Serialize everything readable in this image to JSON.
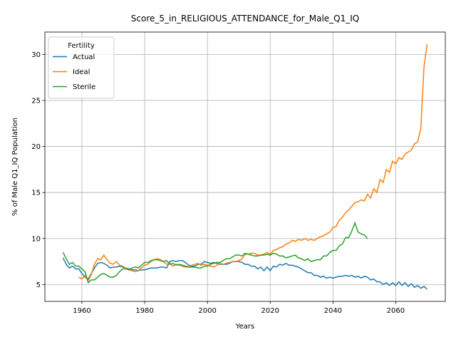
{
  "chart_data": {
    "type": "line",
    "title": "Score_5_in_RELIGIOUS_ATTENDANCE_for_Male_Q1_IQ",
    "xlabel": "Years",
    "ylabel": "% of Male Q1_IQ Population",
    "legend_title": "Fertility",
    "legend_loc": "upper left",
    "grid": true,
    "xlim": [
      1948.2,
      2075.8
    ],
    "ylim": [
      3.17,
      32.43
    ],
    "xticks": [
      1960,
      1980,
      2000,
      2020,
      2040,
      2060
    ],
    "yticks": [
      5,
      10,
      15,
      20,
      25,
      30
    ],
    "x": [
      1954,
      1955,
      1956,
      1957,
      1958,
      1959,
      1960,
      1961,
      1962,
      1963,
      1964,
      1965,
      1966,
      1967,
      1968,
      1969,
      1970,
      1971,
      1972,
      1973,
      1974,
      1975,
      1976,
      1977,
      1978,
      1979,
      1980,
      1981,
      1982,
      1983,
      1984,
      1985,
      1986,
      1987,
      1988,
      1989,
      1990,
      1991,
      1992,
      1993,
      1994,
      1995,
      1996,
      1997,
      1998,
      1999,
      2000,
      2001,
      2002,
      2003,
      2004,
      2005,
      2006,
      2007,
      2008,
      2009,
      2010,
      2011,
      2012,
      2013,
      2014,
      2015,
      2016,
      2017,
      2018,
      2019,
      2020,
      2021,
      2022,
      2023,
      2024,
      2025,
      2026,
      2027,
      2028,
      2029,
      2030,
      2031,
      2032,
      2033,
      2034,
      2035,
      2036,
      2037,
      2038,
      2039,
      2040,
      2041,
      2042,
      2043,
      2044,
      2045,
      2046,
      2047,
      2048,
      2049,
      2050,
      2051,
      2052,
      2053,
      2054,
      2055,
      2056,
      2057,
      2058,
      2059,
      2060,
      2061,
      2062,
      2063,
      2064,
      2065,
      2066,
      2067,
      2068,
      2069,
      2070
    ],
    "series": [
      {
        "name": "Actual",
        "color": "#1f77b4",
        "values": [
          7.9,
          7.2,
          6.8,
          7.0,
          6.7,
          6.7,
          6.2,
          5.8,
          5.6,
          6.2,
          6.8,
          7.3,
          7.4,
          7.3,
          7.1,
          6.8,
          6.9,
          6.9,
          7.0,
          6.9,
          6.8,
          6.7,
          6.6,
          6.6,
          6.5,
          6.6,
          6.6,
          6.7,
          6.8,
          6.8,
          6.8,
          6.9,
          6.9,
          6.8,
          7.5,
          7.6,
          7.5,
          7.6,
          7.6,
          7.4,
          7.1,
          7.0,
          7.0,
          7.2,
          7.2,
          7.5,
          7.4,
          7.3,
          7.4,
          7.3,
          7.2,
          7.2,
          7.2,
          7.3,
          7.5,
          7.5,
          7.5,
          7.4,
          7.2,
          7.2,
          7.0,
          7.0,
          6.7,
          6.9,
          6.5,
          6.9,
          6.5,
          7.0,
          6.9,
          7.2,
          7.1,
          7.3,
          7.1,
          7.1,
          7.0,
          6.9,
          6.7,
          6.5,
          6.3,
          6.3,
          6.0,
          6.0,
          5.8,
          5.9,
          5.7,
          5.8,
          5.7,
          5.8,
          5.9,
          5.9,
          6.0,
          5.9,
          6.0,
          5.8,
          5.9,
          5.7,
          5.9,
          5.8,
          5.5,
          5.6,
          5.3,
          5.3,
          5.0,
          5.2,
          4.9,
          5.2,
          4.9,
          5.3,
          4.9,
          5.2,
          4.8,
          5.1,
          4.7,
          4.9,
          4.6,
          4.8,
          4.5
        ]
      },
      {
        "name": "Ideal",
        "color": "#ff7f0e",
        "values": [
          null,
          null,
          null,
          null,
          null,
          5.8,
          5.6,
          6.0,
          5.4,
          6.1,
          7.2,
          7.8,
          7.7,
          8.2,
          7.7,
          7.3,
          7.2,
          7.5,
          7.1,
          7.0,
          6.8,
          6.6,
          6.5,
          6.4,
          6.5,
          6.8,
          7.1,
          7.2,
          7.5,
          7.7,
          7.8,
          7.7,
          7.5,
          7.2,
          7.3,
          7.0,
          7.2,
          7.1,
          7.0,
          6.9,
          6.9,
          7.1,
          7.2,
          7.3,
          7.1,
          7.2,
          7.1,
          7.0,
          6.9,
          7.1,
          7.3,
          7.2,
          7.3,
          7.4,
          7.5,
          7.5,
          7.6,
          7.8,
          8.3,
          8.3,
          8.4,
          8.4,
          8.2,
          8.2,
          8.3,
          8.5,
          8.3,
          8.7,
          8.8,
          9.0,
          9.1,
          9.4,
          9.5,
          9.8,
          9.7,
          9.9,
          9.8,
          10.0,
          9.8,
          9.9,
          9.8,
          10.0,
          10.2,
          10.3,
          10.5,
          10.7,
          11.2,
          11.3,
          12.0,
          12.3,
          12.8,
          13.1,
          13.5,
          13.9,
          14.0,
          14.2,
          14.1,
          14.8,
          14.4,
          15.4,
          15.0,
          16.4,
          16.1,
          17.5,
          17.2,
          18.4,
          18.1,
          18.8,
          18.6,
          19.2,
          19.4,
          19.6,
          20.3,
          20.5,
          22.0,
          28.6,
          31.1
        ]
      },
      {
        "name": "Sterile",
        "color": "#2ca02c",
        "values": [
          8.5,
          7.8,
          7.2,
          7.4,
          7.0,
          7.0,
          6.7,
          6.4,
          5.2,
          5.5,
          5.5,
          5.8,
          6.1,
          6.2,
          6.0,
          5.8,
          5.8,
          6.0,
          6.4,
          6.7,
          6.7,
          6.6,
          6.8,
          6.9,
          6.8,
          7.1,
          7.4,
          7.4,
          7.6,
          7.7,
          7.7,
          7.6,
          7.5,
          7.6,
          7.2,
          7.3,
          7.1,
          7.2,
          7.1,
          7.0,
          6.9,
          6.9,
          6.9,
          6.8,
          6.8,
          7.0,
          7.0,
          7.2,
          7.3,
          7.4,
          7.4,
          7.6,
          7.8,
          7.8,
          8.0,
          8.2,
          8.2,
          8.1,
          8.4,
          8.3,
          8.2,
          8.1,
          8.1,
          8.2,
          8.2,
          8.3,
          8.2,
          8.4,
          8.3,
          8.1,
          8.1,
          7.9,
          8.0,
          8.1,
          8.2,
          7.9,
          7.8,
          7.6,
          7.8,
          7.5,
          7.6,
          7.7,
          7.7,
          8.1,
          8.1,
          8.5,
          8.7,
          8.7,
          9.2,
          9.4,
          10.1,
          10.1,
          10.8,
          11.7,
          10.7,
          10.5,
          10.4,
          10.0,
          null,
          null,
          null,
          null,
          null,
          null,
          null,
          null,
          null,
          null,
          null,
          null,
          null,
          null,
          null,
          null,
          null,
          null,
          null
        ]
      }
    ]
  }
}
